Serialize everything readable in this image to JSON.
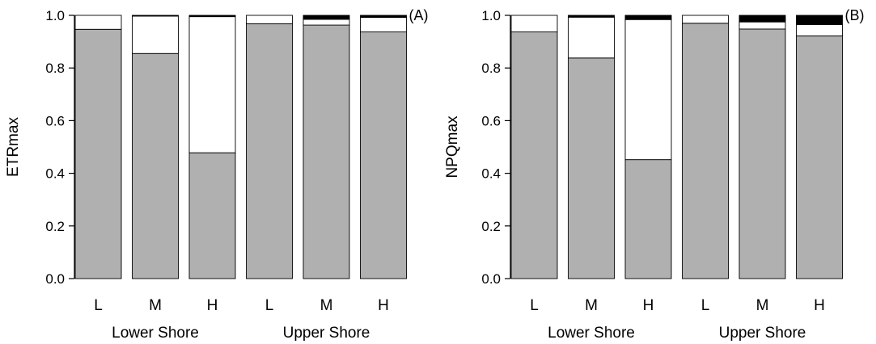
{
  "chart_data": [
    {
      "type": "bar",
      "stacked": true,
      "panel_label": "(A)",
      "ylabel": "ETRmax",
      "xlabel": "",
      "ylim": [
        0,
        1.0
      ],
      "yticks": [
        "0.0",
        "0.2",
        "0.4",
        "0.6",
        "0.8",
        "1.0"
      ],
      "categories": [
        "L",
        "M",
        "H",
        "L",
        "M",
        "H"
      ],
      "groups": [
        {
          "label": "Lower Shore",
          "categories": [
            "L",
            "M",
            "H"
          ]
        },
        {
          "label": "Upper Shore",
          "categories": [
            "L",
            "M",
            "H"
          ]
        }
      ],
      "series": [
        {
          "color": "#b0b0b0",
          "values": [
            0.947,
            0.855,
            0.478,
            0.968,
            0.963,
            0.937
          ]
        },
        {
          "color": "#ffffff",
          "values": [
            0.053,
            0.142,
            0.517,
            0.032,
            0.022,
            0.055
          ]
        },
        {
          "color": "#000000",
          "values": [
            0.0,
            0.003,
            0.005,
            0.0,
            0.015,
            0.008
          ]
        }
      ]
    },
    {
      "type": "bar",
      "stacked": true,
      "panel_label": "(B)",
      "ylabel": "NPQmax",
      "xlabel": "",
      "ylim": [
        0,
        1.0
      ],
      "yticks": [
        "0.0",
        "0.2",
        "0.4",
        "0.6",
        "0.8",
        "1.0"
      ],
      "categories": [
        "L",
        "M",
        "H",
        "L",
        "M",
        "H"
      ],
      "groups": [
        {
          "label": "Lower Shore",
          "categories": [
            "L",
            "M",
            "H"
          ]
        },
        {
          "label": "Upper Shore",
          "categories": [
            "L",
            "M",
            "H"
          ]
        }
      ],
      "series": [
        {
          "color": "#b0b0b0",
          "values": [
            0.937,
            0.838,
            0.452,
            0.97,
            0.948,
            0.922
          ]
        },
        {
          "color": "#ffffff",
          "values": [
            0.063,
            0.155,
            0.532,
            0.03,
            0.027,
            0.043
          ]
        },
        {
          "color": "#000000",
          "values": [
            0.0,
            0.007,
            0.016,
            0.0,
            0.025,
            0.035
          ]
        }
      ]
    }
  ]
}
